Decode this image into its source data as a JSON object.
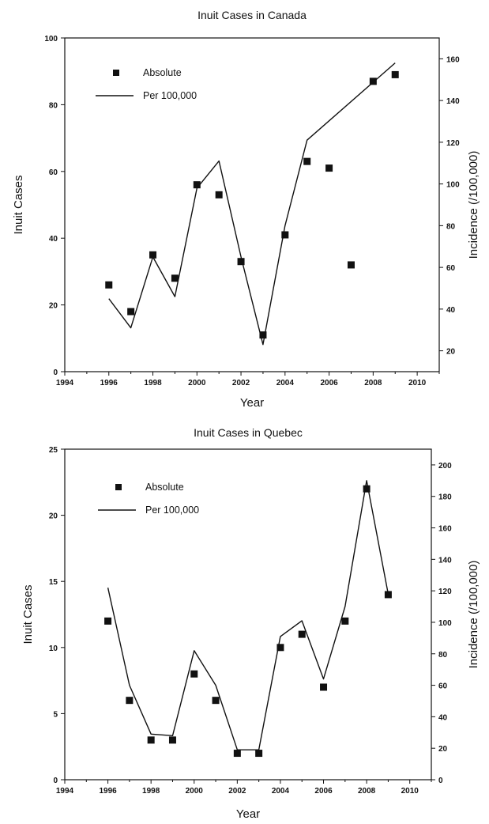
{
  "chart_data": [
    {
      "type": "scatter+line",
      "title": "Inuit Cases in Canada",
      "xlabel": "Year",
      "ylabel": "Inuit Cases",
      "y2label": "Incidence (/100,000)",
      "xlim": [
        1994,
        2011
      ],
      "ylim": [
        0,
        100
      ],
      "y2lim": [
        10,
        170
      ],
      "xticks": [
        "1994",
        "1996",
        "1998",
        "2000",
        "2002",
        "2004",
        "2006",
        "2008",
        "2010"
      ],
      "yticks": [
        "0",
        "20",
        "40",
        "60",
        "80",
        "100"
      ],
      "y2ticks": [
        "20",
        "40",
        "60",
        "80",
        "100",
        "120",
        "140",
        "160"
      ],
      "legend": {
        "position": "top-left",
        "entries": [
          "Absolute",
          "Per 100,000"
        ]
      },
      "grid": false,
      "series": [
        {
          "name": "Absolute",
          "marker": "square",
          "axis": "left",
          "x": [
            1996,
            1997,
            1998,
            1999,
            2000,
            2001,
            2002,
            2003,
            2004,
            2005,
            2006,
            2007,
            2008,
            2009
          ],
          "values": [
            26,
            18,
            35,
            28,
            56,
            53,
            33,
            11,
            41,
            63,
            61,
            32,
            87,
            89
          ]
        },
        {
          "name": "Per 100,000",
          "style": "line",
          "axis": "right",
          "x": [
            1996,
            1997,
            1998,
            1999,
            2000,
            2001,
            2002,
            2003,
            2004,
            2005,
            2009
          ],
          "values": [
            45,
            31,
            65,
            46,
            98,
            111,
            65,
            23,
            80,
            121,
            158
          ]
        }
      ]
    },
    {
      "type": "scatter+line",
      "title": "Inuit Cases in Quebec",
      "xlabel": "Year",
      "ylabel": "Inuit Cases",
      "y2label": "Incidence (/100,000)",
      "xlim": [
        1994,
        2011
      ],
      "ylim": [
        0,
        25
      ],
      "y2lim": [
        0,
        210
      ],
      "xticks": [
        "1994",
        "1996",
        "1998",
        "2000",
        "2002",
        "2004",
        "2006",
        "2008",
        "2010"
      ],
      "yticks": [
        "0",
        "5",
        "10",
        "15",
        "20",
        "25"
      ],
      "y2ticks": [
        "0",
        "20",
        "40",
        "60",
        "80",
        "100",
        "120",
        "140",
        "160",
        "180",
        "200"
      ],
      "legend": {
        "position": "top-left",
        "entries": [
          "Absolute",
          "Per 100,000"
        ]
      },
      "grid": false,
      "series": [
        {
          "name": "Absolute",
          "marker": "square",
          "axis": "left",
          "x": [
            1996,
            1997,
            1998,
            1999,
            2000,
            2001,
            2002,
            2003,
            2004,
            2005,
            2006,
            2007,
            2008,
            2009
          ],
          "values": [
            12,
            6,
            3,
            3,
            8,
            6,
            2,
            2,
            10,
            11,
            7,
            12,
            22,
            14
          ]
        },
        {
          "name": "Per 100,000",
          "style": "line",
          "axis": "right",
          "x": [
            1996,
            1997,
            1998,
            1999,
            2000,
            2001,
            2002,
            2003,
            2004,
            2005,
            2006,
            2007,
            2008,
            2009
          ],
          "values": [
            122,
            60,
            29,
            28,
            82,
            60,
            19,
            19,
            91,
            101,
            64,
            110,
            190,
            118
          ]
        }
      ]
    }
  ]
}
